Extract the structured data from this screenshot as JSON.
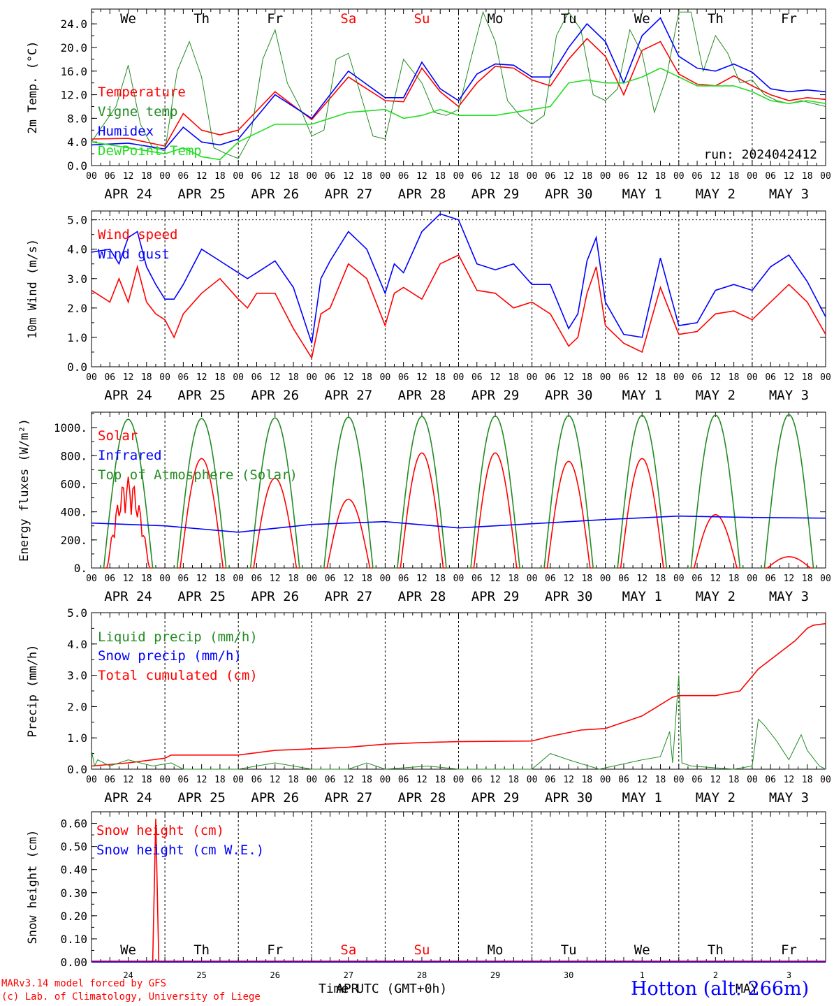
{
  "chart_data": [
    {
      "type": "line",
      "ylabel": "2m Temp. (°C)",
      "ylim": [
        0,
        26.5
      ],
      "yticks": [
        "0.0",
        "4.0",
        "8.0",
        "12.0",
        "16.0",
        "20.0",
        "24.0"
      ],
      "x_range_hours": [
        0,
        240
      ],
      "legend": [
        "Temperature",
        "Vigne temp",
        "Humidex",
        "DewPoint Temp"
      ],
      "annotation": "run: 2024042412",
      "weekdays": [
        "We",
        "Th",
        "Fr",
        "Sa",
        "Su",
        "Mo",
        "Tu",
        "We",
        "Th",
        "Fr"
      ],
      "weekday_colors": [
        "#000000",
        "#000000",
        "#000000",
        "#ff0000",
        "#ff0000",
        "#000000",
        "#000000",
        "#000000",
        "#000000",
        "#000000"
      ],
      "series": [
        {
          "name": "Temperature",
          "color": "#ff0000",
          "x": [
            0,
            12,
            24,
            30,
            36,
            42,
            48,
            60,
            72,
            84,
            96,
            102,
            108,
            114,
            120,
            126,
            132,
            138,
            144,
            150,
            156,
            162,
            168,
            174,
            180,
            186,
            192,
            198,
            204,
            210,
            216,
            222,
            228,
            234,
            240
          ],
          "y": [
            4.5,
            4.6,
            3.3,
            8.8,
            6,
            5.2,
            6,
            12.5,
            7.8,
            15,
            11,
            10.8,
            16.5,
            12.5,
            10,
            14,
            16.8,
            16.5,
            14.5,
            13.5,
            18,
            21.5,
            18.5,
            12,
            19.5,
            21,
            15.5,
            13.8,
            13.5,
            15.2,
            13.5,
            12,
            11,
            11.5,
            11.2
          ]
        },
        {
          "name": "Vigne temp",
          "color": "#228b22",
          "x": [
            0,
            8,
            12,
            16,
            20,
            24,
            28,
            32,
            36,
            40,
            44,
            48,
            52,
            56,
            60,
            64,
            68,
            72,
            76,
            80,
            84,
            88,
            92,
            96,
            102,
            108,
            112,
            116,
            120,
            124,
            128,
            132,
            136,
            140,
            144,
            148,
            152,
            156,
            160,
            164,
            168,
            172,
            176,
            180,
            184,
            188,
            192,
            196,
            200,
            204,
            208,
            212,
            216,
            220,
            224,
            228,
            232,
            240
          ],
          "y": [
            4,
            10,
            17,
            7,
            3,
            2.5,
            16,
            21,
            15,
            3,
            2,
            1.2,
            5,
            18,
            23,
            14,
            10,
            5,
            6,
            18,
            19,
            12,
            5,
            4.5,
            18,
            14,
            9,
            8.5,
            9.5,
            18,
            26,
            21,
            11,
            8.5,
            7,
            8.5,
            22,
            26,
            23,
            12,
            11,
            13,
            23,
            19,
            9,
            15,
            26,
            26,
            16,
            22,
            19,
            14,
            14.5,
            12,
            11,
            10.5,
            11,
            10
          ]
        },
        {
          "name": "Humidex",
          "color": "#0000ff",
          "x": [
            0,
            12,
            24,
            30,
            36,
            42,
            48,
            60,
            72,
            84,
            96,
            102,
            108,
            114,
            120,
            126,
            132,
            138,
            144,
            150,
            156,
            162,
            168,
            174,
            180,
            186,
            192,
            198,
            204,
            210,
            216,
            222,
            228,
            234,
            240
          ],
          "y": [
            3.5,
            3.8,
            2.8,
            6.5,
            4,
            3.5,
            4.5,
            12,
            8,
            16,
            11.5,
            11.5,
            17.5,
            13,
            11,
            15.5,
            17.2,
            17,
            15,
            15,
            20,
            24,
            21,
            14,
            22,
            25,
            18.5,
            16.5,
            16,
            17.2,
            15.8,
            13,
            12.5,
            12.8,
            12.5
          ]
        },
        {
          "name": "DewPoint Temp",
          "color": "#22dd22",
          "x": [
            0,
            12,
            24,
            30,
            36,
            42,
            48,
            60,
            72,
            84,
            96,
            102,
            108,
            114,
            120,
            126,
            132,
            138,
            144,
            150,
            156,
            162,
            168,
            174,
            180,
            186,
            192,
            198,
            204,
            210,
            216,
            222,
            228,
            234,
            240
          ],
          "y": [
            4,
            3,
            2,
            3,
            1.5,
            1,
            4,
            7,
            7,
            9,
            9.5,
            8,
            8.5,
            9.5,
            8.5,
            8.5,
            8.5,
            9,
            9.5,
            10,
            14,
            14.5,
            14,
            14,
            15,
            16.5,
            15,
            13.5,
            13.5,
            13.5,
            12.5,
            11,
            10.5,
            11,
            10.5
          ]
        }
      ]
    },
    {
      "type": "line",
      "ylabel": "10m Wind (m/s)",
      "ylim": [
        0,
        5.3
      ],
      "yticks": [
        "0.0",
        "1.0",
        "2.0",
        "3.0",
        "4.0",
        "5.0"
      ],
      "x_range_hours": [
        0,
        240
      ],
      "legend": [
        "Wind speed",
        "Wind gust"
      ],
      "series": [
        {
          "name": "Wind speed",
          "color": "#ff0000",
          "x": [
            0,
            6,
            9,
            12,
            15,
            18,
            21,
            24,
            27,
            30,
            36,
            42,
            48,
            51,
            54,
            60,
            66,
            72,
            75,
            78,
            84,
            90,
            96,
            99,
            102,
            108,
            114,
            120,
            126,
            132,
            138,
            144,
            150,
            156,
            159,
            162,
            165,
            168,
            174,
            180,
            186,
            192,
            198,
            204,
            210,
            216,
            222,
            228,
            234,
            240
          ],
          "y": [
            2.6,
            2.2,
            3,
            2.2,
            3.4,
            2.2,
            1.8,
            1.6,
            1,
            1.8,
            2.5,
            3,
            2.3,
            2,
            2.5,
            2.5,
            1.3,
            0.3,
            1.8,
            2,
            3.5,
            3,
            1.4,
            2.5,
            2.7,
            2.3,
            3.5,
            3.8,
            2.6,
            2.5,
            2,
            2.2,
            1.8,
            0.7,
            1,
            2.5,
            3.4,
            1.4,
            0.8,
            0.5,
            2.7,
            1.1,
            1.2,
            1.8,
            1.9,
            1.6,
            2.2,
            2.8,
            2.2,
            1.1
          ]
        },
        {
          "name": "Wind gust",
          "color": "#0000ff",
          "x": [
            0,
            6,
            9,
            12,
            15,
            18,
            21,
            24,
            27,
            30,
            36,
            42,
            48,
            51,
            54,
            60,
            66,
            72,
            75,
            78,
            84,
            90,
            96,
            99,
            102,
            108,
            114,
            120,
            126,
            132,
            138,
            144,
            150,
            156,
            159,
            162,
            165,
            168,
            174,
            180,
            186,
            192,
            198,
            204,
            210,
            216,
            222,
            228,
            234,
            240
          ],
          "y": [
            3.9,
            4,
            3.5,
            4.4,
            4.6,
            3.4,
            2.8,
            2.3,
            2.3,
            2.8,
            4,
            3.6,
            3.2,
            3,
            3.2,
            3.6,
            2.7,
            0.8,
            3,
            3.6,
            4.6,
            4,
            2.5,
            3.5,
            3.2,
            4.6,
            5.2,
            5,
            3.5,
            3.3,
            3.5,
            2.8,
            2.8,
            1.3,
            1.8,
            3.6,
            4.4,
            2.2,
            1.1,
            1,
            3.7,
            1.4,
            1.5,
            2.6,
            2.8,
            2.6,
            3.4,
            3.8,
            2.9,
            1.7
          ]
        }
      ]
    },
    {
      "type": "line",
      "ylabel": "Energy fluxes (W/m²)",
      "ylim": [
        0,
        1110
      ],
      "yticks": [
        "0.",
        "200.",
        "400.",
        "600.",
        "800.",
        "1000."
      ],
      "x_range_hours": [
        0,
        240
      ],
      "legend": [
        "Solar",
        "Infrared",
        "Top of Atmosphere (Solar)"
      ],
      "toa_peak": [
        1060,
        1065,
        1070,
        1075,
        1080,
        1083,
        1086,
        1088,
        1090,
        1093
      ],
      "solar_peak": [
        650,
        780,
        640,
        490,
        820,
        820,
        760,
        780,
        380,
        80
      ],
      "infrared": {
        "x": [
          0,
          24,
          48,
          72,
          96,
          120,
          144,
          168,
          192,
          216,
          240
        ],
        "y": [
          320,
          300,
          255,
          310,
          330,
          285,
          315,
          345,
          370,
          360,
          355
        ]
      }
    },
    {
      "type": "line",
      "ylabel": "Precip (mm/h)",
      "ylim": [
        0,
        5.0
      ],
      "yticks": [
        "0.0",
        "1.0",
        "2.0",
        "3.0",
        "4.0",
        "5.0"
      ],
      "x_range_hours": [
        0,
        240
      ],
      "legend": [
        "Liquid precip (mm/h)",
        "Snow precip (mm/h)",
        "Total cumulated (cm)"
      ],
      "series": [
        {
          "name": "Total cumulated (cm)",
          "color": "#ff0000",
          "x": [
            0,
            12,
            24,
            26,
            48,
            60,
            72,
            84,
            96,
            108,
            120,
            144,
            150,
            160,
            168,
            180,
            190,
            192,
            204,
            212,
            218,
            226,
            230,
            234,
            236,
            240
          ],
          "y": [
            0.1,
            0.2,
            0.35,
            0.45,
            0.45,
            0.6,
            0.65,
            0.7,
            0.8,
            0.85,
            0.88,
            0.9,
            1.05,
            1.25,
            1.3,
            1.7,
            2.3,
            2.35,
            2.35,
            2.5,
            3.2,
            3.8,
            4.1,
            4.5,
            4.6,
            4.65
          ]
        },
        {
          "name": "Liquid precip (mm/h)",
          "color": "#228b22",
          "x": [
            0,
            1,
            2,
            6,
            12,
            20,
            26,
            30,
            48,
            60,
            72,
            84,
            90,
            96,
            110,
            120,
            144,
            150,
            156,
            166,
            180,
            186,
            189,
            190,
            192,
            193,
            196,
            210,
            216,
            218,
            220,
            224,
            228,
            232,
            234,
            238,
            240
          ],
          "y": [
            0.6,
            0.1,
            0.3,
            0.1,
            0.3,
            0.1,
            0.2,
            0,
            0,
            0.2,
            0,
            0,
            0.2,
            0,
            0.1,
            0,
            0,
            0.5,
            0.3,
            0,
            0.3,
            0.4,
            1.2,
            0.2,
            3.0,
            0.2,
            0.1,
            0,
            0.1,
            1.6,
            1.4,
            0.9,
            0.3,
            1.1,
            0.6,
            0.1,
            0
          ]
        }
      ]
    },
    {
      "type": "line",
      "ylabel": "Snow height (cm)",
      "ylim": [
        0,
        0.65
      ],
      "yticks": [
        "0.00",
        "0.10",
        "0.20",
        "0.30",
        "0.40",
        "0.50",
        "0.60"
      ],
      "x_range_hours": [
        0,
        240
      ],
      "legend": [
        "Snow height (cm)",
        "Snow height (cm W.E.)"
      ],
      "weekdays": [
        "We",
        "Th",
        "Fr",
        "Sa",
        "Su",
        "Mo",
        "Tu",
        "We",
        "Th",
        "Fr"
      ],
      "weekday_colors": [
        "#000000",
        "#000000",
        "#000000",
        "#ff0000",
        "#ff0000",
        "#000000",
        "#000000",
        "#000000",
        "#000000",
        "#000000"
      ],
      "day_numbers": [
        "24",
        "25",
        "26",
        "27",
        "28",
        "29",
        "30",
        "1",
        "2",
        "3"
      ],
      "series": [
        {
          "name": "Snow height (cm)",
          "color": "#ff0000",
          "x": [
            0,
            20,
            21,
            22,
            23,
            240
          ],
          "y": [
            0,
            0,
            0.62,
            0,
            0,
            0
          ]
        },
        {
          "name": "Snow height (cm W.E.)",
          "color": "#0000ff",
          "x": [
            0,
            240
          ],
          "y": [
            0,
            0
          ]
        }
      ]
    }
  ],
  "x_hour_labels": [
    "00",
    "06",
    "12",
    "18"
  ],
  "date_labels": [
    "APR 24",
    "APR 25",
    "APR 26",
    "APR 27",
    "APR 28",
    "APR 29",
    "APR 30",
    "MAY  1",
    "MAY  2",
    "MAY  3"
  ],
  "footer": {
    "credit_line1": "MARv3.14 model forced by GFS",
    "credit_line2": "(c) Lab. of Climatology, University of Liege",
    "time_axis_label": "Time UTC (GMT+0h)",
    "month_label_apr": "APR",
    "month_label_may": "MAY",
    "station": "Hotton (alt: 266m)"
  },
  "colors": {
    "axis": "#000000",
    "grid": "#000000",
    "station": "#0000ff",
    "credit": "#ff0000"
  }
}
